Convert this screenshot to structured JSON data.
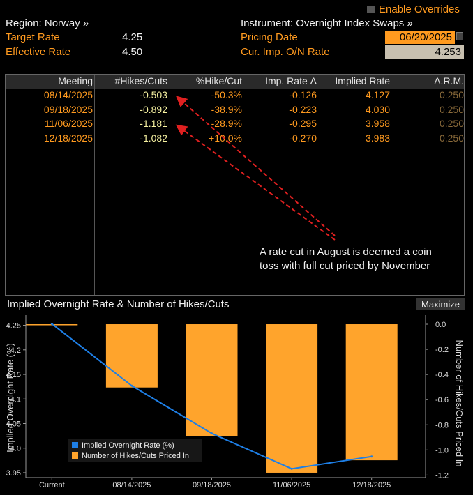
{
  "header": {
    "region_label": "Region: Norway »",
    "instrument_label": "Instrument: Overnight Index Swaps »",
    "enable_overrides": "Enable Overrides",
    "target_rate_label": "Target Rate",
    "target_rate_value": "4.25",
    "effective_rate_label": "Effective Rate",
    "effective_rate_value": "4.50",
    "pricing_date_label": "Pricing Date",
    "pricing_date_value": "06/20/2025",
    "cur_imp_label": "Cur. Imp. O/N Rate",
    "cur_imp_value": "4.253"
  },
  "table": {
    "columns": [
      "Meeting",
      "#Hikes/Cuts",
      "%Hike/Cut",
      "Imp. Rate Δ",
      "Implied Rate",
      "A.R.M."
    ],
    "rows": [
      {
        "meeting": "08/14/2025",
        "hikes": "-0.503",
        "pct": "-50.3%",
        "delta": "-0.126",
        "implied": "4.127",
        "arm": "0.250"
      },
      {
        "meeting": "09/18/2025",
        "hikes": "-0.892",
        "pct": "-38.9%",
        "delta": "-0.223",
        "implied": "4.030",
        "arm": "0.250"
      },
      {
        "meeting": "11/06/2025",
        "hikes": "-1.181",
        "pct": "-28.9%",
        "delta": "-0.295",
        "implied": "3.958",
        "arm": "0.250"
      },
      {
        "meeting": "12/18/2025",
        "hikes": "-1.082",
        "pct": "+10.0%",
        "delta": "-0.270",
        "implied": "3.983",
        "arm": "0.250"
      }
    ]
  },
  "annotation": {
    "line1": "A rate cut in August is deemed a coin",
    "line2": "toss with full cut priced by November"
  },
  "chart_panel": {
    "title": "Implied Overnight Rate & Number of Hikes/Cuts",
    "maximize_label": "Maximize"
  },
  "chart_data": {
    "type": "bar",
    "categories": [
      "Current",
      "08/14/2025",
      "09/18/2025",
      "11/06/2025",
      "12/18/2025"
    ],
    "series": [
      {
        "name": "Implied Overnight Rate (%)",
        "type": "line",
        "axis": "left",
        "values": [
          4.253,
          4.127,
          4.03,
          3.958,
          3.983
        ]
      },
      {
        "name": "Number of Hikes/Cuts Priced In",
        "type": "bar",
        "axis": "right",
        "values": [
          0,
          -0.503,
          -0.892,
          -1.181,
          -1.082
        ]
      }
    ],
    "ylabel": "Implied Overnight Rate (%)",
    "y2label": "Number of Hikes/Cuts Priced In",
    "ylim": [
      3.94,
      4.265
    ],
    "y2lim": [
      -1.22,
      0.05
    ],
    "yticks": [
      "4.25",
      "4.2",
      "4.15",
      "4.1",
      "4.05",
      "4.0",
      "3.95"
    ],
    "y2ticks": [
      "0.0",
      "-0.2",
      "-0.4",
      "-0.6",
      "-0.8",
      "-1.0",
      "-1.2"
    ],
    "legend_position": "bottom-left",
    "colors": {
      "line": "#1e7fe6",
      "bar": "#ffa42c"
    }
  }
}
